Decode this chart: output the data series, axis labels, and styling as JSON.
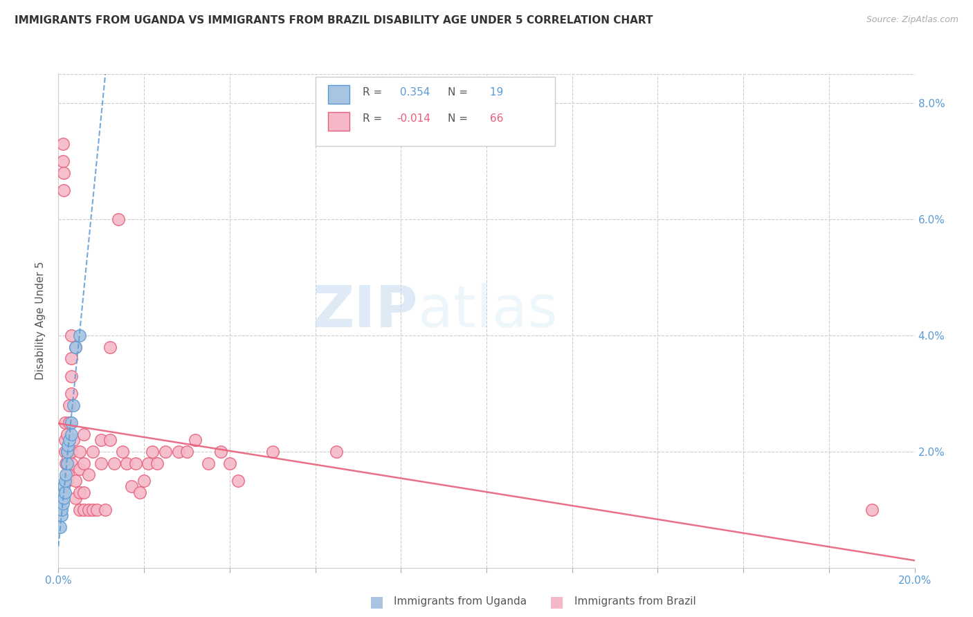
{
  "title": "IMMIGRANTS FROM UGANDA VS IMMIGRANTS FROM BRAZIL DISABILITY AGE UNDER 5 CORRELATION CHART",
  "source": "Source: ZipAtlas.com",
  "ylabel": "Disability Age Under 5",
  "xlim": [
    0.0,
    0.2
  ],
  "ylim": [
    0.0,
    0.085
  ],
  "uganda_color": "#a8c4e0",
  "uganda_edge_color": "#5b9bd5",
  "brazil_color": "#f4b8c8",
  "brazil_edge_color": "#e8607a",
  "uganda_R": 0.354,
  "uganda_N": 19,
  "brazil_R": -0.014,
  "brazil_N": 66,
  "legend_label_uganda": "Immigrants from Uganda",
  "legend_label_brazil": "Immigrants from Brazil",
  "watermark_zip": "ZIP",
  "watermark_atlas": "atlas",
  "uganda_x": [
    0.0005,
    0.0007,
    0.0008,
    0.001,
    0.001,
    0.0012,
    0.0013,
    0.0015,
    0.0015,
    0.0018,
    0.002,
    0.002,
    0.0022,
    0.0025,
    0.003,
    0.003,
    0.0035,
    0.004,
    0.005
  ],
  "uganda_y": [
    0.007,
    0.009,
    0.01,
    0.011,
    0.013,
    0.012,
    0.014,
    0.013,
    0.015,
    0.016,
    0.018,
    0.02,
    0.021,
    0.022,
    0.023,
    0.025,
    0.028,
    0.038,
    0.04
  ],
  "brazil_x": [
    0.001,
    0.001,
    0.0012,
    0.0013,
    0.0015,
    0.0015,
    0.0015,
    0.0018,
    0.002,
    0.002,
    0.002,
    0.002,
    0.0022,
    0.0022,
    0.0025,
    0.0025,
    0.003,
    0.003,
    0.003,
    0.003,
    0.003,
    0.003,
    0.0035,
    0.004,
    0.004,
    0.004,
    0.005,
    0.005,
    0.005,
    0.005,
    0.006,
    0.006,
    0.006,
    0.006,
    0.007,
    0.007,
    0.008,
    0.008,
    0.009,
    0.01,
    0.01,
    0.011,
    0.012,
    0.012,
    0.013,
    0.014,
    0.015,
    0.016,
    0.017,
    0.018,
    0.019,
    0.02,
    0.021,
    0.022,
    0.023,
    0.025,
    0.028,
    0.03,
    0.032,
    0.035,
    0.038,
    0.04,
    0.042,
    0.05,
    0.065,
    0.19
  ],
  "brazil_y": [
    0.07,
    0.073,
    0.065,
    0.068,
    0.02,
    0.022,
    0.025,
    0.018,
    0.015,
    0.018,
    0.02,
    0.023,
    0.016,
    0.019,
    0.025,
    0.028,
    0.03,
    0.033,
    0.036,
    0.04,
    0.018,
    0.02,
    0.022,
    0.012,
    0.015,
    0.038,
    0.01,
    0.013,
    0.017,
    0.02,
    0.01,
    0.013,
    0.018,
    0.023,
    0.01,
    0.016,
    0.01,
    0.02,
    0.01,
    0.018,
    0.022,
    0.01,
    0.022,
    0.038,
    0.018,
    0.06,
    0.02,
    0.018,
    0.014,
    0.018,
    0.013,
    0.015,
    0.018,
    0.02,
    0.018,
    0.02,
    0.02,
    0.02,
    0.022,
    0.018,
    0.02,
    0.018,
    0.015,
    0.02,
    0.02,
    0.01
  ]
}
